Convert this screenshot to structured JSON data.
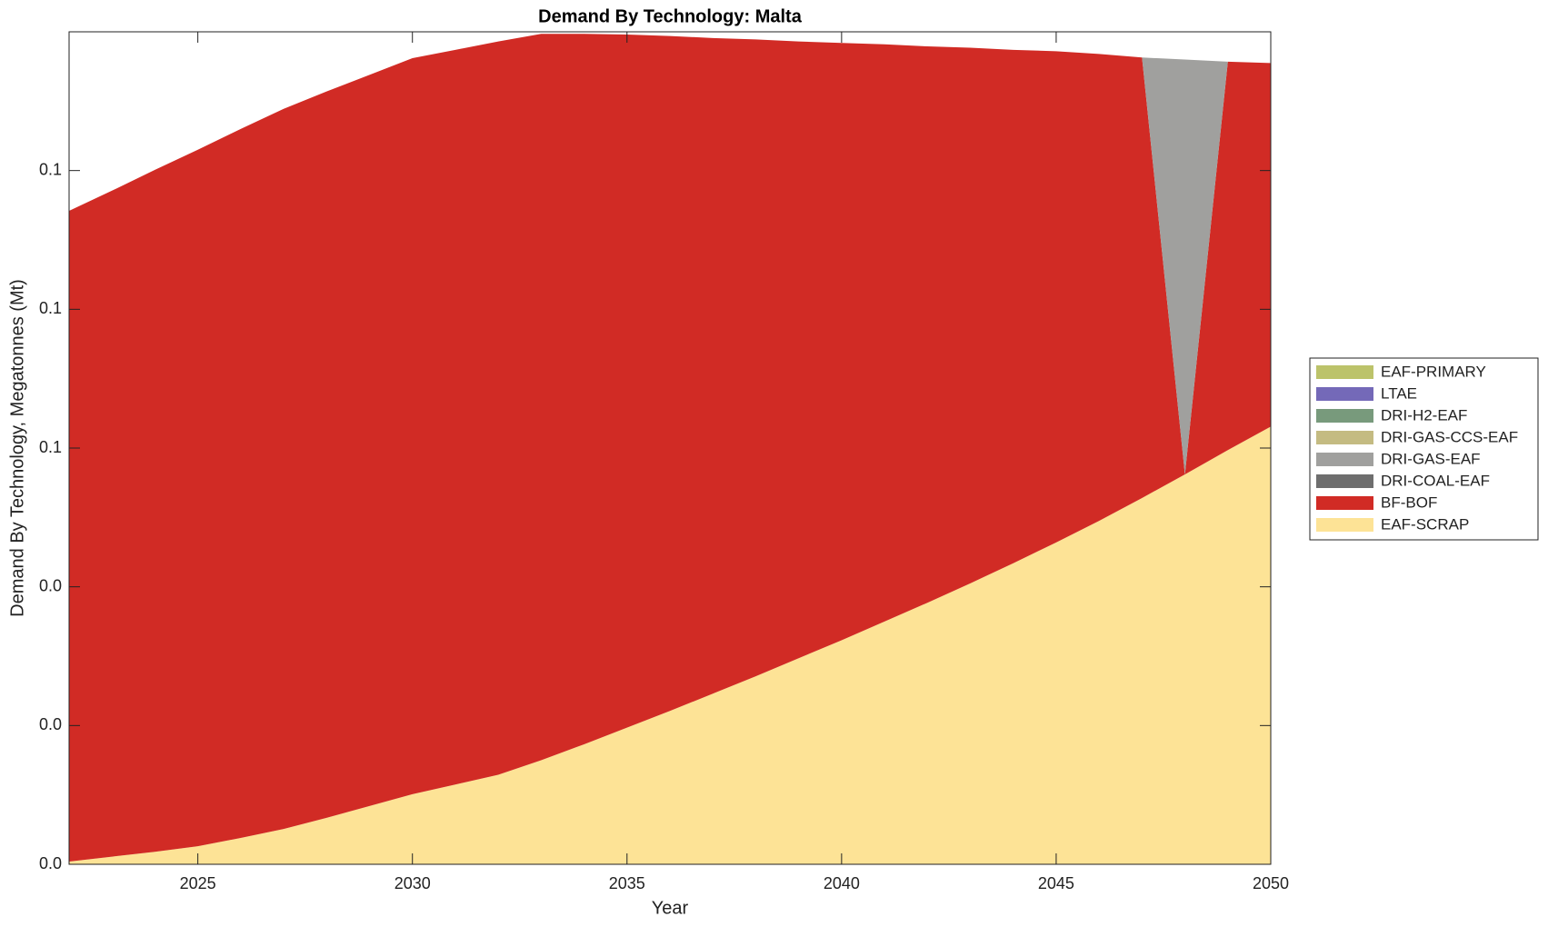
{
  "chart_data": {
    "type": "stacked-area",
    "title": "Demand By Technology: Malta",
    "xlabel": "Year",
    "ylabel": "Demand By Technology, Megatonnes (Mt)",
    "x": [
      2022,
      2023,
      2024,
      2025,
      2026,
      2027,
      2028,
      2029,
      2030,
      2031,
      2032,
      2033,
      2034,
      2035,
      2036,
      2037,
      2038,
      2039,
      2040,
      2041,
      2042,
      2043,
      2044,
      2045,
      2046,
      2047,
      2048,
      2049,
      2050
    ],
    "xlim": [
      2022,
      2050
    ],
    "xticks": [
      2025,
      2030,
      2035,
      2040,
      2045,
      2050
    ],
    "ylim": [
      0,
      0.12
    ],
    "yticks": [
      {
        "value": 0,
        "label": "0.0"
      },
      {
        "value": 0.02,
        "label": "0.0"
      },
      {
        "value": 0.04,
        "label": "0.0"
      },
      {
        "value": 0.06,
        "label": "0.1"
      },
      {
        "value": 0.08,
        "label": "0.1"
      },
      {
        "value": 0.1,
        "label": "0.1"
      }
    ],
    "series": [
      {
        "name": "EAF-PRIMARY",
        "color": "#bcc36a",
        "values": [
          0,
          0,
          0,
          0,
          0,
          0,
          0,
          0,
          0,
          0,
          0,
          0,
          0,
          0,
          0,
          0,
          0,
          0,
          0,
          0,
          0,
          0,
          0,
          0,
          0,
          0,
          0,
          0,
          0
        ]
      },
      {
        "name": "LTAE",
        "color": "#7469b8",
        "values": [
          0,
          0,
          0,
          0,
          0,
          0,
          0,
          0,
          0,
          0,
          0,
          0,
          0,
          0,
          0,
          0,
          0,
          0,
          0,
          0,
          0,
          0,
          0,
          0,
          0,
          0,
          0,
          0,
          0
        ]
      },
      {
        "name": "DRI-H2-EAF",
        "color": "#789a7c",
        "values": [
          0,
          0,
          0,
          0,
          0,
          0,
          0,
          0,
          0,
          0,
          0,
          0,
          0,
          0,
          0,
          0,
          0,
          0,
          0,
          0,
          0,
          0,
          0,
          0,
          0,
          0,
          0,
          0,
          0
        ]
      },
      {
        "name": "DRI-GAS-CCS-EAF",
        "color": "#c4bb82",
        "values": [
          0,
          0,
          0,
          0,
          0,
          0,
          0,
          0,
          0,
          0,
          0,
          0,
          0,
          0,
          0,
          0,
          0,
          0,
          0,
          0,
          0,
          0,
          0,
          0,
          0,
          0,
          0,
          0,
          0
        ]
      },
      {
        "name": "DRI-GAS-EAF",
        "color": "#a0a09e",
        "values": [
          0,
          0,
          0,
          0,
          0,
          0,
          0,
          0,
          0,
          0,
          0,
          0,
          0,
          0,
          0,
          0,
          0,
          0,
          0,
          0,
          0,
          0,
          0,
          0,
          0,
          0,
          0.0598,
          0,
          0
        ]
      },
      {
        "name": "DRI-COAL-EAF",
        "color": "#6e6e6e",
        "values": [
          0,
          0,
          0,
          0,
          0,
          0,
          0,
          0,
          0,
          0,
          0,
          0,
          0,
          0,
          0,
          0,
          0,
          0,
          0,
          0,
          0,
          0,
          0,
          0,
          0,
          0,
          0,
          0,
          0
        ]
      },
      {
        "name": "BF-BOF",
        "color": "#d12b25",
        "values": [
          0.0938,
          0.096,
          0.0983,
          0.1004,
          0.1022,
          0.1038,
          0.1047,
          0.1054,
          0.1061,
          0.1059,
          0.1057,
          0.1047,
          0.1024,
          0.0999,
          0.0973,
          0.0945,
          0.0918,
          0.0889,
          0.0861,
          0.0832,
          0.0802,
          0.0772,
          0.074,
          0.0708,
          0.0673,
          0.0635,
          0,
          0.056,
          0.0524
        ]
      },
      {
        "name": "EAF-SCRAP",
        "color": "#fde396",
        "values": [
          0.0004,
          0.0011,
          0.0018,
          0.0026,
          0.0038,
          0.0051,
          0.0067,
          0.0084,
          0.0101,
          0.0115,
          0.0129,
          0.015,
          0.0173,
          0.0197,
          0.0221,
          0.0246,
          0.0271,
          0.0297,
          0.0323,
          0.035,
          0.0377,
          0.0405,
          0.0434,
          0.0464,
          0.0495,
          0.0528,
          0.0562,
          0.0597,
          0.0631
        ]
      }
    ]
  }
}
